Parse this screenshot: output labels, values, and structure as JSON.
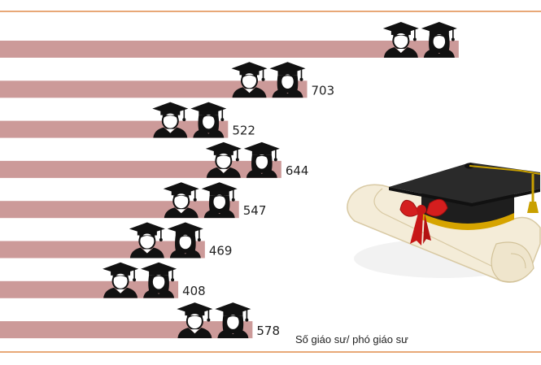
{
  "chart_data": {
    "type": "bar",
    "orientation": "horizontal",
    "categories": [
      "",
      "",
      "",
      "",
      "",
      "",
      "",
      ""
    ],
    "values": [
      1050,
      703,
      522,
      644,
      547,
      469,
      408,
      578
    ],
    "value_labels": [
      "",
      "703",
      "522",
      "644",
      "547",
      "469",
      "408",
      "578"
    ],
    "title": "",
    "xlabel": "Số giáo sư/ phó giáo sư",
    "ylabel": "",
    "grid": false,
    "legend": "none",
    "bar_color": "#cc9a99",
    "frame_color": "#e8a877",
    "value_label_color": "#222222",
    "icon": "graduate-pair-icon",
    "decoration": "graduation-cap-diploma-icon"
  }
}
